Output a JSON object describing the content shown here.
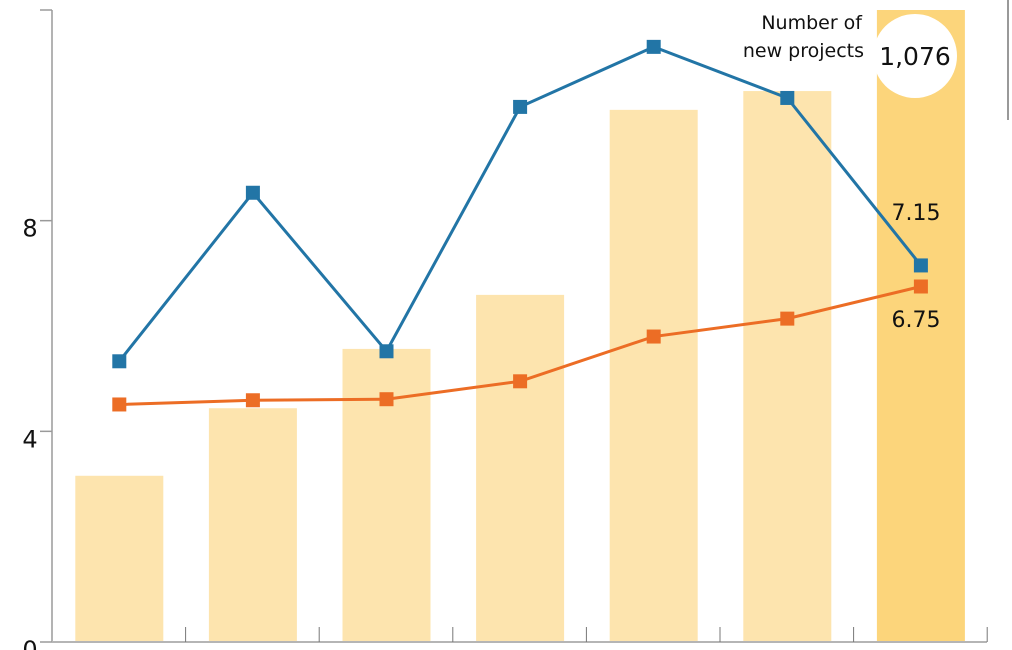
{
  "chart_data": {
    "type": "bar+line",
    "categories": [
      "",
      "",
      "",
      "",
      "",
      "",
      ""
    ],
    "yticks": [
      "0",
      "4",
      "8"
    ],
    "ylim": [
      0,
      12
    ],
    "bars": {
      "name": "Number of new projects",
      "name_line1": "Number of",
      "name_line2": "new projects",
      "values": [
        283,
        398,
        499,
        591,
        906,
        938,
        1076
      ],
      "max_label": "1,076",
      "color": "#fde4ae",
      "highlight_color": "#fcd57b"
    },
    "series": [
      {
        "values": [
          5.33,
          8.53,
          5.52,
          10.16,
          11.3,
          10.33,
          7.15
        ],
        "color": "#2275a6",
        "end_label": "7.15"
      },
      {
        "values": [
          4.51,
          4.59,
          4.61,
          4.95,
          5.8,
          6.14,
          6.75
        ],
        "color": "#ec6d25",
        "end_label": "6.75"
      }
    ],
    "grid": false
  }
}
